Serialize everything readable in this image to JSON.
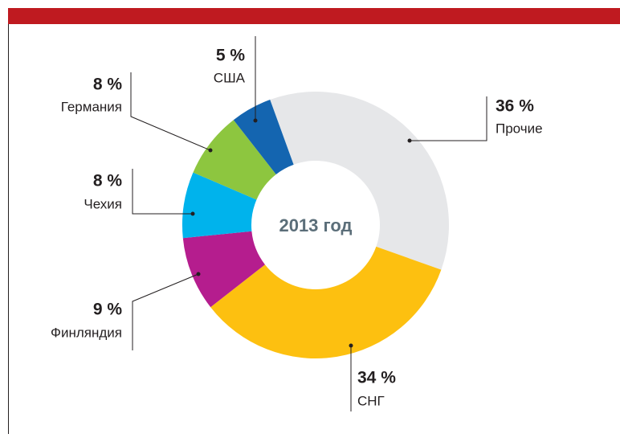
{
  "chart_data": {
    "type": "donut",
    "center_label": "2013 год",
    "categories": [
      "Прочие",
      "СНГ",
      "Финляндия",
      "Чехия",
      "Германия",
      "США"
    ],
    "values": [
      36,
      34,
      9,
      8,
      8,
      5
    ],
    "value_labels": [
      "36 %",
      "34 %",
      "9 %",
      "8 %",
      "8 %",
      "5 %"
    ],
    "colors": [
      "#e6e7e9",
      "#fdc010",
      "#b51d8e",
      "#00b3ec",
      "#8dc63f",
      "#1465b0"
    ]
  }
}
